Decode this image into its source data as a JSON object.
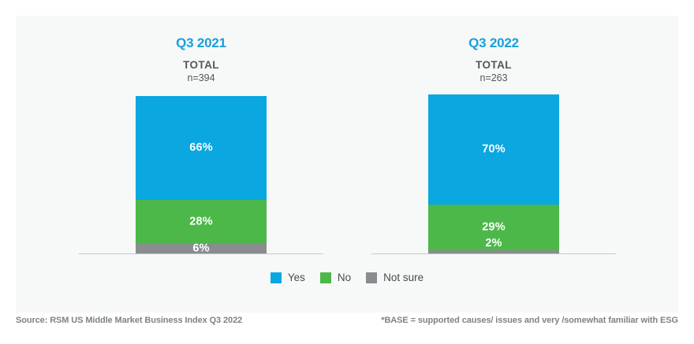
{
  "colors": {
    "panel_background": "#F7F8F8",
    "header_blue": "#17A0DA",
    "subtitle_gray": "#54565A",
    "axis_gray": "#C8C9CB",
    "footer_gray": "#7F8285",
    "bar_blue": "#0AA7E0",
    "bar_green": "#4CB849",
    "bar_gray": "#8A8C8F"
  },
  "chart_data": {
    "type": "bar",
    "stacked": true,
    "unit": "%",
    "categories": [
      "Yes",
      "No",
      "Not sure"
    ],
    "series_colors": [
      "#0AA7E0",
      "#4CB849",
      "#8A8C8F"
    ],
    "groups": [
      {
        "title": "Q3 2021",
        "subtitle": "TOTAL",
        "sample": "n=394",
        "values": [
          66,
          28,
          6
        ],
        "labels": [
          "66%",
          "28%",
          "6%"
        ]
      },
      {
        "title": "Q3 2022",
        "subtitle": "TOTAL",
        "sample": "n=263",
        "values": [
          70,
          29,
          2
        ],
        "labels": [
          "70%",
          "29%",
          "2%"
        ]
      }
    ],
    "legend": [
      {
        "label": "Yes",
        "color": "#0AA7E0"
      },
      {
        "label": "No",
        "color": "#4CB849"
      },
      {
        "label": "Not sure",
        "color": "#8A8C8F"
      }
    ],
    "legend_position": "bottom-center",
    "axis_range": [
      0,
      100
    ],
    "grid": false
  },
  "footer": {
    "source": "Source: RSM US Middle Market Business Index Q3 2022",
    "base_note": "*BASE = supported causes/ issues and very /somewhat familiar with ESG"
  }
}
